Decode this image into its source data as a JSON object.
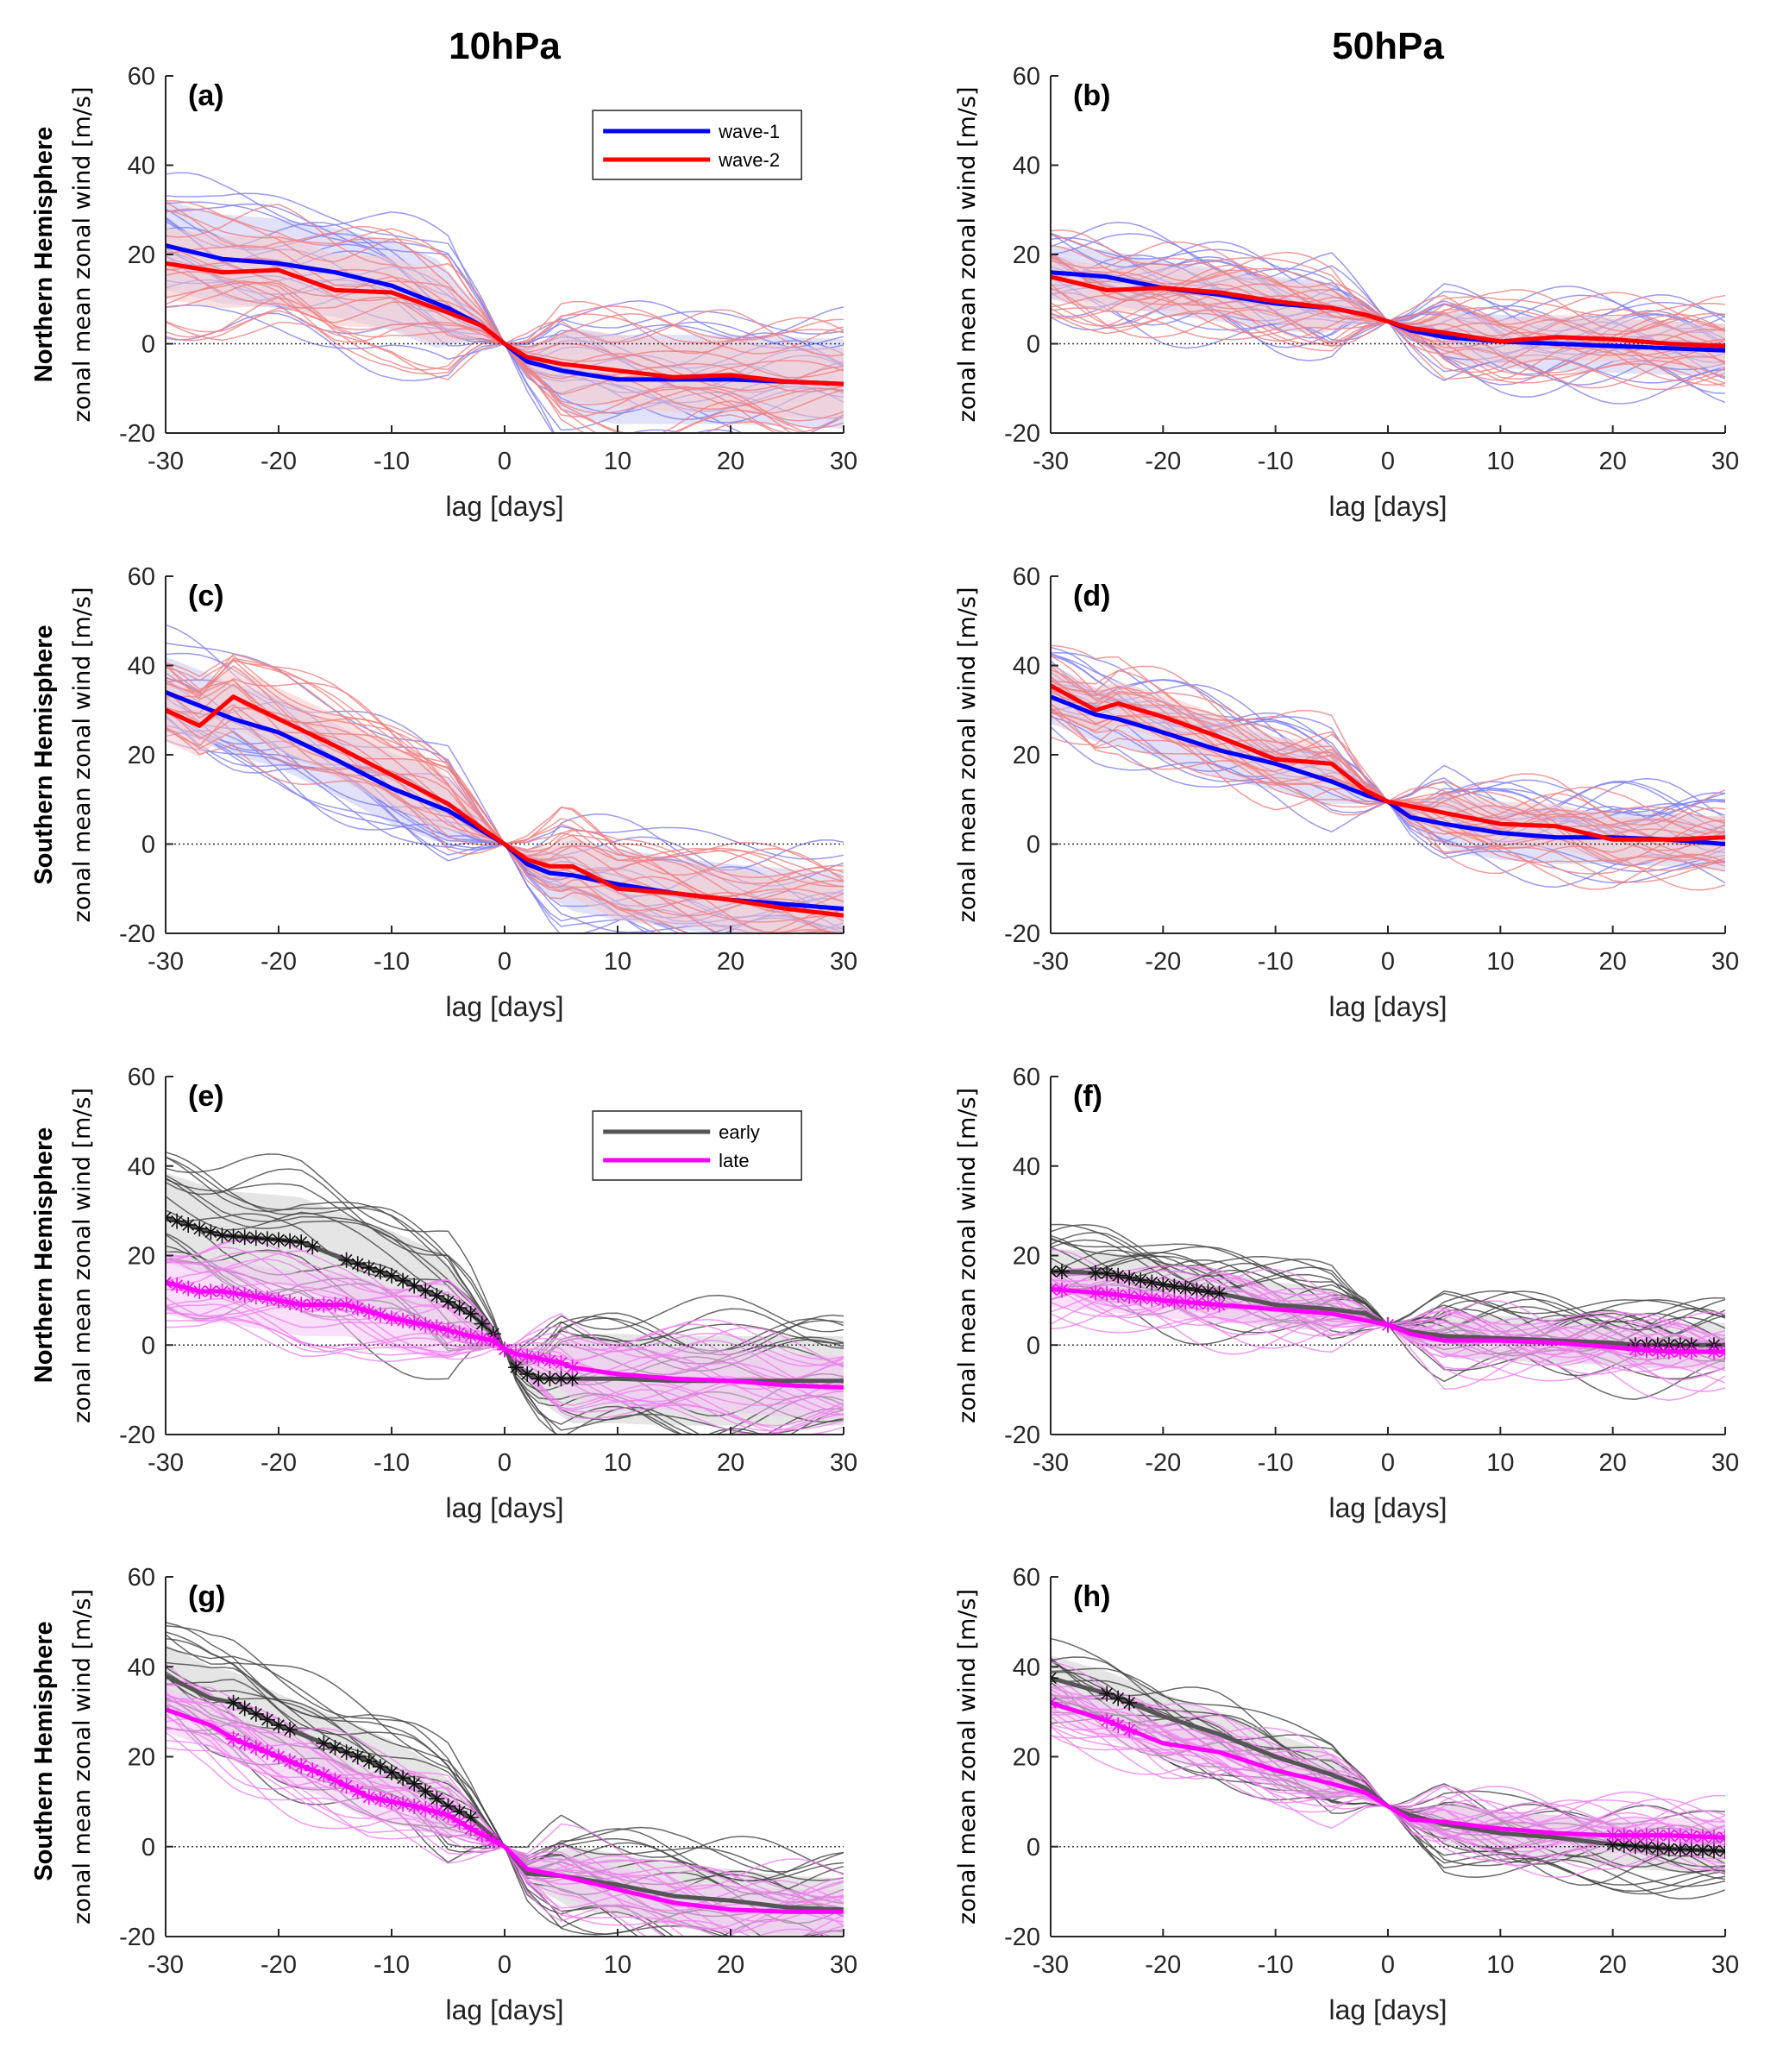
{
  "figure": {
    "column_titles": [
      "10hPa",
      "50hPa"
    ],
    "row_labels": [
      "Northern Hemisphere",
      "Southern Hemisphere",
      "Northern Hemisphere",
      "Southern Hemisphere"
    ]
  },
  "colors": {
    "wave1": "#0000ff",
    "wave2": "#ff0000",
    "wave1_thin": "#8080f0",
    "wave2_thin": "#f08080",
    "early": "#555555",
    "late": "#ff00ff",
    "early_thin": "#444444",
    "late_thin": "#f080f0",
    "zero_line": "#333333"
  },
  "chart_data": [
    {
      "panel": "(a)",
      "type": "line",
      "level": "10hPa",
      "hemisphere": "Northern Hemisphere",
      "xlabel": "lag [days]",
      "ylabel": "zonal mean zonal wind [m/s]",
      "xlim": [
        -30,
        30
      ],
      "ylim": [
        -20,
        60
      ],
      "xticks": [
        -30,
        -20,
        -10,
        0,
        10,
        20,
        30
      ],
      "yticks": [
        -20,
        0,
        20,
        40,
        60
      ],
      "legend": {
        "position": "top-right",
        "entries": [
          "wave-1",
          "wave-2"
        ]
      },
      "x": [
        -30,
        -25,
        -20,
        -15,
        -10,
        -5,
        -2,
        0,
        2,
        5,
        10,
        15,
        20,
        25,
        30
      ],
      "series": [
        {
          "name": "wave-1",
          "style": "wave1",
          "values": [
            22,
            19,
            18,
            16,
            13,
            8,
            4,
            0,
            -4,
            -6,
            -8,
            -8,
            -8,
            -8.5,
            -9
          ]
        },
        {
          "name": "wave-2",
          "style": "wave2",
          "values": [
            18,
            16,
            16.5,
            12,
            11.5,
            7,
            4,
            0,
            -3,
            -4.5,
            -6,
            -7.5,
            -7,
            -8.5,
            -9
          ]
        }
      ],
      "spread": {
        "wave-1": {
          "upper_offset": 10,
          "lower_offset": 10
        },
        "wave-2": {
          "upper_offset": 8,
          "lower_offset": 8
        }
      }
    },
    {
      "panel": "(b)",
      "type": "line",
      "level": "50hPa",
      "hemisphere": "Northern Hemisphere",
      "xlabel": "lag [days]",
      "ylabel": "zonal mean zonal wind [m/s]",
      "xlim": [
        -30,
        30
      ],
      "ylim": [
        -20,
        60
      ],
      "xticks": [
        -30,
        -20,
        -10,
        0,
        10,
        20,
        30
      ],
      "yticks": [
        -20,
        0,
        20,
        40,
        60
      ],
      "x": [
        -30,
        -25,
        -20,
        -15,
        -10,
        -5,
        -2,
        0,
        2,
        5,
        10,
        15,
        20,
        25,
        30
      ],
      "series": [
        {
          "name": "wave-1",
          "style": "wave1",
          "values": [
            16,
            15,
            12.5,
            11,
            9,
            8,
            6.5,
            5,
            3,
            1.5,
            0.5,
            0,
            -0.5,
            -1,
            -1.5
          ]
        },
        {
          "name": "wave-2",
          "style": "wave2",
          "values": [
            15,
            12,
            12.5,
            11.5,
            9.5,
            8,
            6.5,
            5,
            3.5,
            2.5,
            0.5,
            1.5,
            1,
            0,
            -0.5
          ]
        }
      ],
      "spread": {
        "wave-1": {
          "upper_offset": 6,
          "lower_offset": 6
        },
        "wave-2": {
          "upper_offset": 5,
          "lower_offset": 5
        }
      }
    },
    {
      "panel": "(c)",
      "type": "line",
      "level": "10hPa",
      "hemisphere": "Southern Hemisphere",
      "xlabel": "lag [days]",
      "ylabel": "zonal mean zonal wind [m/s]",
      "xlim": [
        -30,
        30
      ],
      "ylim": [
        -20,
        60
      ],
      "xticks": [
        -30,
        -20,
        -10,
        0,
        10,
        20,
        30
      ],
      "yticks": [
        -20,
        0,
        20,
        40,
        60
      ],
      "x": [
        -30,
        -27,
        -24,
        -20,
        -15,
        -10,
        -5,
        -2,
        0,
        2,
        4,
        6,
        10,
        15,
        20,
        25,
        30
      ],
      "series": [
        {
          "name": "wave-1",
          "style": "wave1",
          "values": [
            34,
            31,
            28,
            25,
            19,
            12.5,
            7.5,
            3,
            0,
            -4.5,
            -6.5,
            -7,
            -9,
            -11,
            -12.5,
            -13.5,
            -14.5
          ]
        },
        {
          "name": "wave-2",
          "style": "wave2",
          "values": [
            30,
            26.5,
            33,
            28,
            22,
            15.5,
            9,
            3.5,
            0,
            -3.5,
            -5,
            -5,
            -10,
            -11,
            -12.5,
            -14.5,
            -16
          ]
        }
      ],
      "spread": {
        "wave-1": {
          "upper_offset": 8,
          "lower_offset": 8
        },
        "wave-2": {
          "upper_offset": 7,
          "lower_offset": 7
        }
      }
    },
    {
      "panel": "(d)",
      "type": "line",
      "level": "50hPa",
      "hemisphere": "Southern Hemisphere",
      "xlabel": "lag [days]",
      "ylabel": "zonal mean zonal wind [m/s]",
      "xlim": [
        -30,
        30
      ],
      "ylim": [
        -20,
        60
      ],
      "xticks": [
        -30,
        -20,
        -10,
        0,
        10,
        20,
        30
      ],
      "yticks": [
        -20,
        0,
        20,
        40,
        60
      ],
      "x": [
        -30,
        -26,
        -24,
        -20,
        -15,
        -10,
        -5,
        -2,
        0,
        2,
        5,
        10,
        15,
        20,
        25,
        30
      ],
      "series": [
        {
          "name": "wave-1",
          "style": "wave1",
          "values": [
            33,
            29,
            28,
            25,
            21,
            18,
            14,
            11,
            9.5,
            6,
            4.5,
            2.5,
            1.5,
            1.5,
            1,
            0
          ]
        },
        {
          "name": "wave-2",
          "style": "wave2",
          "values": [
            35.5,
            30,
            31.5,
            28.5,
            24,
            19,
            18,
            12,
            9.5,
            8.5,
            7,
            4.5,
            4,
            1,
            1,
            1.5
          ]
        }
      ],
      "spread": {
        "wave-1": {
          "upper_offset": 6,
          "lower_offset": 6
        },
        "wave-2": {
          "upper_offset": 5,
          "lower_offset": 5
        }
      }
    },
    {
      "panel": "(e)",
      "type": "line",
      "level": "10hPa",
      "hemisphere": "Northern Hemisphere",
      "xlabel": "lag [days]",
      "ylabel": "zonal mean zonal wind [m/s]",
      "xlim": [
        -30,
        30
      ],
      "ylim": [
        -20,
        60
      ],
      "xticks": [
        -30,
        -20,
        -10,
        0,
        10,
        20,
        30
      ],
      "yticks": [
        -20,
        0,
        20,
        40,
        60
      ],
      "legend": {
        "position": "top-right",
        "entries": [
          "early",
          "late"
        ]
      },
      "x": [
        -30,
        -27,
        -25,
        -20,
        -18,
        -14,
        -10,
        -6,
        -3,
        -1,
        0,
        1,
        2,
        3,
        5,
        6,
        10,
        15,
        20,
        25,
        30
      ],
      "series": [
        {
          "name": "early",
          "style": "early",
          "values": [
            28.5,
            26,
            24.5,
            23.5,
            23,
            19,
            15.5,
            11,
            7,
            2.5,
            -1,
            -5,
            -6.5,
            -7.5,
            -7.5,
            -7.5,
            -7.5,
            -8,
            -8,
            -8,
            -8
          ]
        },
        {
          "name": "late",
          "style": "late",
          "values": [
            14,
            12,
            12,
            10,
            9,
            9,
            6,
            4,
            2,
            1,
            -1,
            -2,
            -2.5,
            -3,
            -4,
            -5,
            -6.5,
            -7.5,
            -8,
            -9,
            -9.5
          ]
        }
      ],
      "significant_markers": {
        "early": [
          -30,
          -29,
          -28,
          -27,
          -26,
          -25,
          -24,
          -23,
          -22,
          -21,
          -20,
          -19,
          -18,
          -17,
          -14,
          -13,
          -12,
          -11,
          -10,
          -9,
          -8,
          -7,
          -6,
          -5,
          -4,
          -3,
          -2,
          -1,
          0,
          1,
          2,
          3,
          4,
          5,
          6
        ],
        "late": [
          -30,
          -29,
          -28,
          -27,
          -26,
          -25,
          -24,
          -23,
          -22,
          -21,
          -20,
          -19,
          -18,
          -17,
          -16,
          -15,
          -14,
          -13,
          -12,
          -11,
          -10,
          -9,
          -8,
          -7,
          -6,
          -5,
          -4,
          -3,
          -2,
          -1,
          0,
          1,
          2,
          3,
          4,
          5,
          6
        ]
      },
      "spread": {
        "early": {
          "upper_offset": 10,
          "lower_offset": 10
        },
        "late": {
          "upper_offset": 7,
          "lower_offset": 7
        }
      }
    },
    {
      "panel": "(f)",
      "type": "line",
      "level": "50hPa",
      "hemisphere": "Northern Hemisphere",
      "xlabel": "lag [days]",
      "ylabel": "zonal mean zonal wind [m/s]",
      "xlim": [
        -30,
        30
      ],
      "ylim": [
        -20,
        60
      ],
      "xticks": [
        -30,
        -20,
        -10,
        0,
        10,
        20,
        30
      ],
      "yticks": [
        -20,
        0,
        20,
        40,
        60
      ],
      "x": [
        -30,
        -25,
        -20,
        -15,
        -10,
        -5,
        -2,
        0,
        2,
        5,
        10,
        15,
        20,
        22,
        25,
        30
      ],
      "series": [
        {
          "name": "early",
          "style": "early",
          "values": [
            16.5,
            16,
            13.5,
            11.5,
            9,
            8,
            7,
            4.5,
            3,
            2,
            1.5,
            1,
            0.5,
            0,
            0,
            0
          ]
        },
        {
          "name": "late",
          "style": "late",
          "values": [
            12.5,
            11.5,
            10,
            9,
            8,
            7,
            5.5,
            4.5,
            2.5,
            1,
            1,
            0.5,
            -0.5,
            -1,
            -1.5,
            -1.5
          ]
        }
      ],
      "significant_markers": {
        "early": [
          -30,
          -29,
          -26,
          -25,
          -24,
          -23,
          -22,
          -21,
          -20,
          -19,
          -18,
          -17,
          -16,
          -15,
          0,
          22,
          23,
          24,
          25,
          26,
          27,
          29
        ],
        "late": [
          -30,
          -29,
          -26,
          -25,
          -24,
          -23,
          -22,
          -21,
          -20,
          -19,
          -18,
          -17,
          -16,
          -15,
          0,
          22,
          23,
          24,
          25,
          26,
          27,
          29,
          30
        ]
      },
      "spread": {
        "early": {
          "upper_offset": 5,
          "lower_offset": 5
        },
        "late": {
          "upper_offset": 4,
          "lower_offset": 4
        }
      }
    },
    {
      "panel": "(g)",
      "type": "line",
      "level": "10hPa",
      "hemisphere": "Southern Hemisphere",
      "xlabel": "lag [days]",
      "ylabel": "zonal mean zonal wind [m/s]",
      "xlim": [
        -30,
        30
      ],
      "ylim": [
        -20,
        60
      ],
      "xticks": [
        -30,
        -20,
        -10,
        0,
        10,
        20,
        30
      ],
      "yticks": [
        -20,
        0,
        20,
        40,
        60
      ],
      "x": [
        -30,
        -26,
        -24,
        -20,
        -16,
        -12,
        -8,
        -5,
        -3,
        0,
        2,
        5,
        10,
        15,
        20,
        25,
        30
      ],
      "series": [
        {
          "name": "early",
          "style": "early",
          "values": [
            38,
            33,
            32,
            27,
            23,
            19,
            14,
            9,
            6.5,
            0,
            -6,
            -6.5,
            -8.5,
            -11,
            -12,
            -13.5,
            -14
          ]
        },
        {
          "name": "late",
          "style": "late",
          "values": [
            30.5,
            27,
            24,
            20,
            16,
            11,
            9,
            7,
            4,
            0,
            -5,
            -6.5,
            -9.5,
            -12.5,
            -14,
            -14.5,
            -14.5
          ]
        }
      ],
      "significant_markers": {
        "early": [
          -24,
          -23,
          -22,
          -21,
          -20,
          -19,
          -16,
          -15,
          -14,
          -13,
          -12,
          -11,
          -10,
          -9,
          -8,
          -7,
          -6,
          -5,
          -4,
          -3
        ],
        "late": [
          -24,
          -23,
          -22,
          -21,
          -20,
          -19,
          -18,
          -17,
          -16,
          -15,
          -14,
          -13,
          -12,
          -11,
          -10,
          -9,
          -8,
          -7,
          -6,
          -5,
          -4,
          -3,
          -2,
          -1
        ]
      },
      "spread": {
        "early": {
          "upper_offset": 7,
          "lower_offset": 7
        },
        "late": {
          "upper_offset": 5,
          "lower_offset": 5
        }
      }
    },
    {
      "panel": "(h)",
      "type": "line",
      "level": "50hPa",
      "hemisphere": "Southern Hemisphere",
      "xlabel": "lag [days]",
      "ylabel": "zonal mean zonal wind [m/s]",
      "xlim": [
        -30,
        30
      ],
      "ylim": [
        -20,
        60
      ],
      "xticks": [
        -30,
        -20,
        -10,
        0,
        10,
        20,
        30
      ],
      "yticks": [
        -20,
        0,
        20,
        40,
        60
      ],
      "x": [
        -30,
        -25,
        -20,
        -15,
        -10,
        -5,
        -2,
        0,
        2,
        5,
        10,
        15,
        20,
        25,
        30
      ],
      "series": [
        {
          "name": "early",
          "style": "early",
          "values": [
            37.5,
            34,
            29,
            25,
            20,
            16,
            13,
            9,
            7,
            5,
            3,
            2,
            0.5,
            -0.5,
            -1
          ]
        },
        {
          "name": "late",
          "style": "late",
          "values": [
            32,
            28,
            23,
            21,
            17,
            14,
            12,
            9,
            6,
            5.5,
            4,
            3,
            2.5,
            2.5,
            2
          ]
        }
      ],
      "significant_markers": {
        "early": [
          -30,
          -25,
          -24,
          -23,
          20,
          21,
          22,
          23,
          24,
          25,
          26,
          27,
          28,
          29,
          30
        ],
        "late": [
          -30,
          -25,
          -24,
          -23,
          20,
          21,
          22,
          23,
          24,
          25,
          26,
          27,
          28,
          29,
          30
        ]
      },
      "spread": {
        "early": {
          "upper_offset": 5,
          "lower_offset": 5
        },
        "late": {
          "upper_offset": 4,
          "lower_offset": 4
        }
      }
    }
  ]
}
